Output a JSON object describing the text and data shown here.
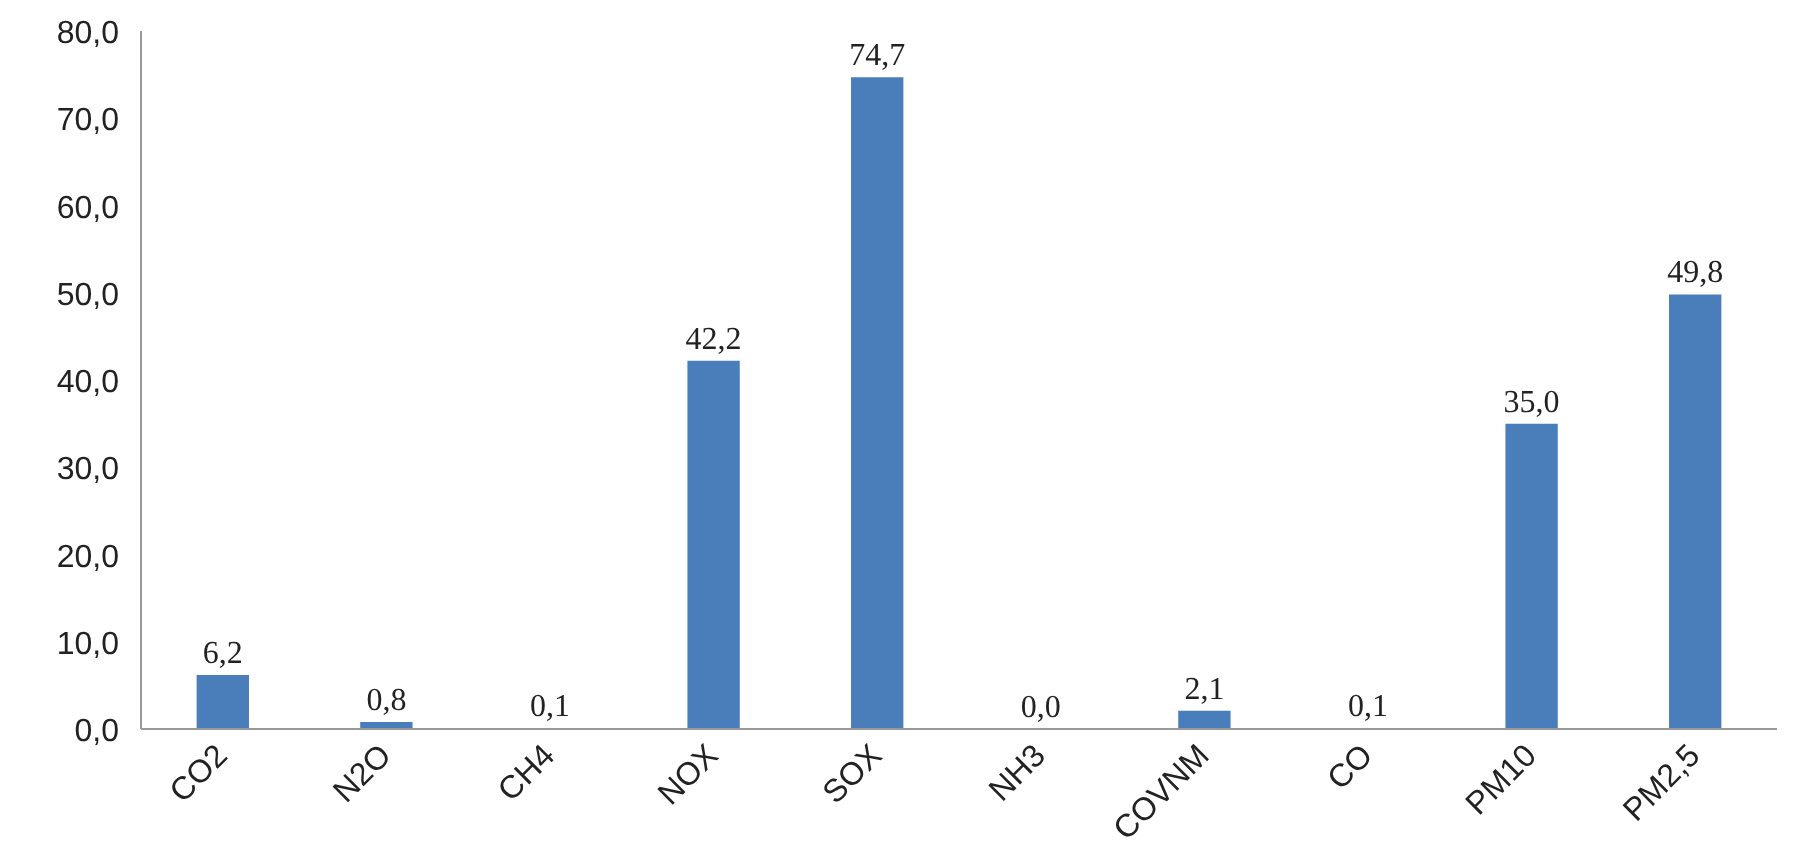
{
  "chart_data": {
    "type": "bar",
    "categories": [
      "CO2",
      "N2O",
      "CH4",
      "NOX",
      "SOX",
      "NH3",
      "COVNM",
      "CO",
      "PM10",
      "PM2,5"
    ],
    "values": [
      6.2,
      0.8,
      0.1,
      42.2,
      74.7,
      0.0,
      2.1,
      0.1,
      35.0,
      49.8
    ],
    "value_labels": [
      "6,2",
      "0,8",
      "0,1",
      "42,2",
      "74,7",
      "0,0",
      "2,1",
      "0,1",
      "35,0",
      "49,8"
    ],
    "color": "#4a7ebb",
    "ylim": [
      0,
      80
    ],
    "yticks": [
      {
        "value": 0,
        "label": "0,0"
      },
      {
        "value": 10,
        "label": "10,0"
      },
      {
        "value": 20,
        "label": "20,0"
      },
      {
        "value": 30,
        "label": "30,0"
      },
      {
        "value": 40,
        "label": "40,0"
      },
      {
        "value": 50,
        "label": "50,0"
      },
      {
        "value": 60,
        "label": "60,0"
      },
      {
        "value": 70,
        "label": "70,0"
      },
      {
        "value": 80,
        "label": "80,0"
      }
    ],
    "grid": false
  }
}
